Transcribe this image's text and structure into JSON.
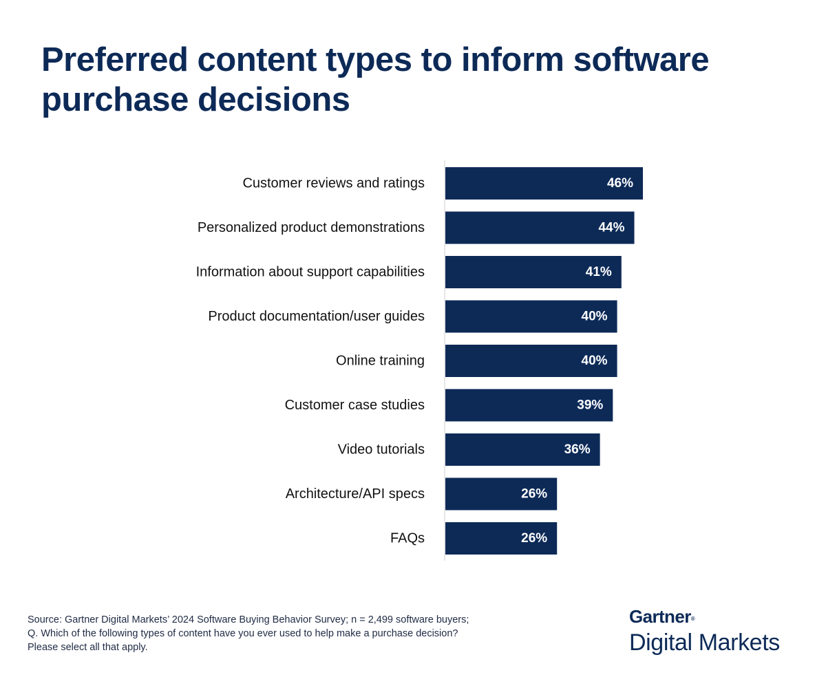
{
  "title": "Preferred content types to inform software purchase decisions",
  "colors": {
    "bar": "#0d2a57",
    "title": "#0d2a57",
    "axis": "#cccccc",
    "bar_label": "#ffffff"
  },
  "chart_data": {
    "type": "bar",
    "orientation": "horizontal",
    "title": "Preferred content types to inform software purchase decisions",
    "categories": [
      "Customer reviews and ratings",
      "Personalized product demonstrations",
      "Information about support capabilities",
      "Product documentation/user guides",
      "Online training",
      "Customer case studies",
      "Video tutorials",
      "Architecture/API specs",
      "FAQs"
    ],
    "values": [
      46,
      44,
      41,
      40,
      40,
      39,
      36,
      26,
      26
    ],
    "value_labels": [
      "46%",
      "44%",
      "41%",
      "40%",
      "40%",
      "39%",
      "36%",
      "26%",
      "26%"
    ],
    "unit": "%",
    "xlim": [
      0,
      46
    ],
    "grid": false,
    "legend": "none"
  },
  "source": {
    "line1": "Source:  Gartner Digital Markets’ 2024 Software Buying Behavior Survey; n = 2,499 software buyers;",
    "line2": "Q. Which of the following types of content have you ever used to help make a purchase decision?",
    "line3": "Please select all that apply."
  },
  "logo": {
    "brand": "Gartner",
    "brand_mark": "®",
    "sub": "Digital Markets"
  }
}
